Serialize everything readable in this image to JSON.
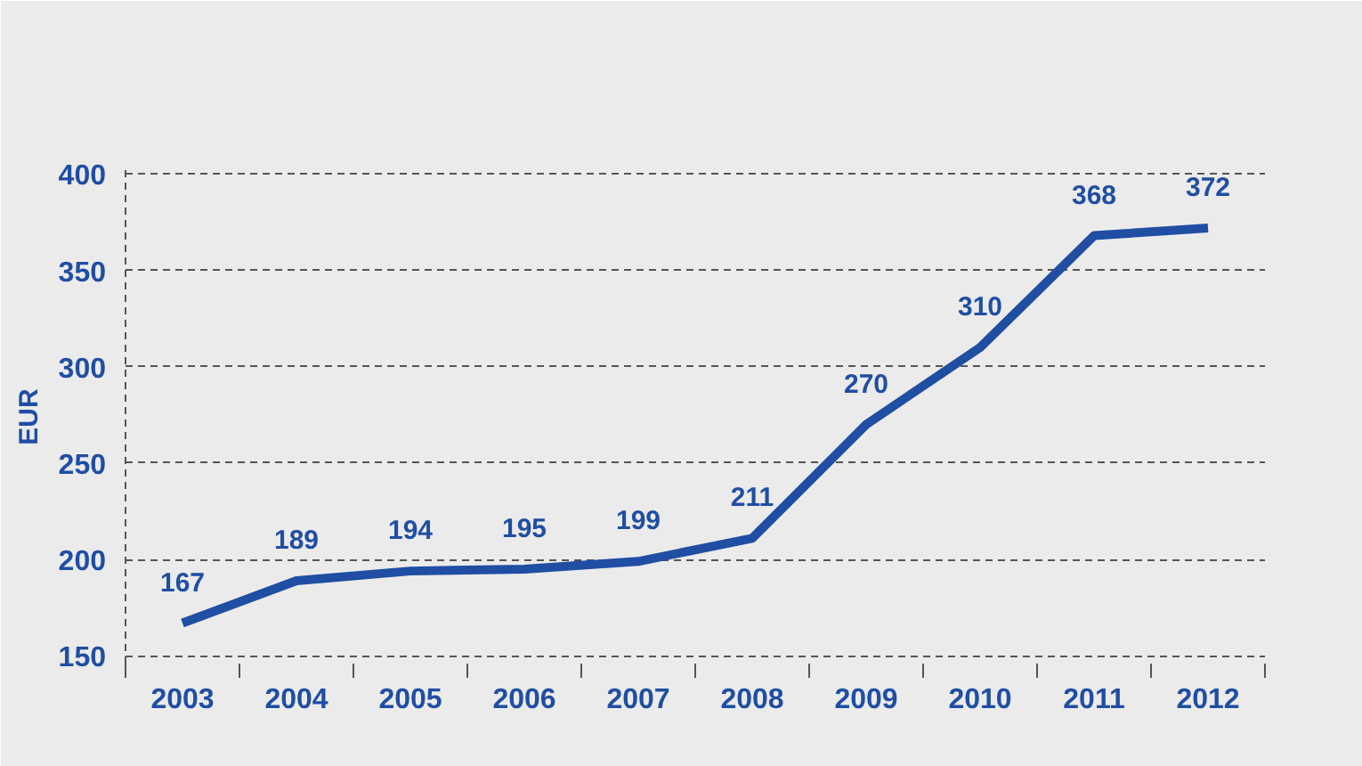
{
  "chart_data": {
    "type": "line",
    "ylabel": "EUR",
    "categories": [
      "2003",
      "2004",
      "2005",
      "2006",
      "2007",
      "2008",
      "2009",
      "2010",
      "2011",
      "2012"
    ],
    "series": [
      {
        "color": "#1f4ea3",
        "values": [
          167,
          189,
          194,
          195,
          199,
          211,
          270,
          310,
          368,
          372
        ]
      }
    ],
    "ylim": [
      146,
      402
    ],
    "yticks": [
      150,
      200,
      250,
      300,
      350,
      400
    ],
    "grid": "y",
    "marker": "none",
    "line_style": "solid",
    "data_labels": true
  }
}
